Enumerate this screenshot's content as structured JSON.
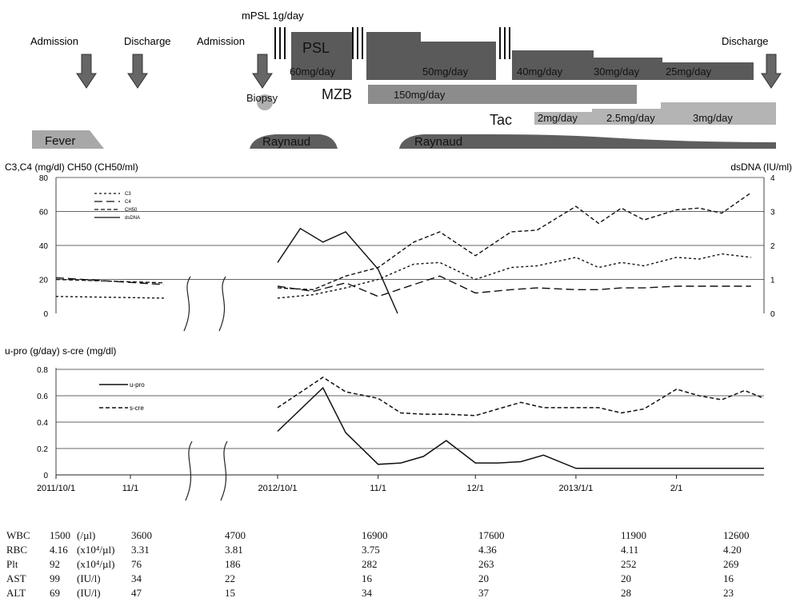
{
  "timeline": {
    "events": [
      {
        "label": "Admission"
      },
      {
        "label": "Discharge"
      },
      {
        "label": "Admission"
      },
      {
        "label": "Discharge"
      }
    ],
    "biopsy_label": "Biopsy",
    "mpsl_label": "mPSL 1g/day",
    "drugs": [
      {
        "name": "PSL",
        "doses": [
          "60mg/day",
          "50mg/day",
          "40mg/day",
          "30mg/day",
          "25mg/day"
        ]
      },
      {
        "name": "MZB",
        "doses": [
          "150mg/day"
        ]
      },
      {
        "name": "Tac",
        "doses": [
          "2mg/day",
          "2.5mg/day",
          "3mg/day"
        ]
      }
    ],
    "symptoms": [
      "Fever",
      "Raynaud",
      "Raynaud"
    ],
    "colors": {
      "psl": "#5a5a5a",
      "mzb": "#8c8c8c",
      "tac": "#b4b4b4",
      "fever": "#a8a8a8",
      "raynaud": "#5e5e5e",
      "arrow": "#666666"
    }
  },
  "chart_data": [
    {
      "type": "line",
      "ylabel_left": "C3,C4 (mg/dl)  CH50 (CH50/ml)",
      "ylabel_right": "dsDNA (IU/ml)",
      "ylim_left": [
        0,
        80
      ],
      "ylim_right": [
        0,
        4
      ],
      "yticks_left": [
        "0",
        "20",
        "40",
        "60",
        "80"
      ],
      "yticks_right": [
        "0",
        "1",
        "2",
        "3",
        "4"
      ],
      "legend": [
        "C3",
        "C4",
        "CH50",
        "dsDNA"
      ],
      "grid": true,
      "series": [
        {
          "name": "C3",
          "axis": "left",
          "style": "short-dash",
          "x": [
            "2011/10/1",
            "2011/11/15",
            "2012/10/1",
            "2012/10/12",
            "2012/10/22",
            "2012/11/1",
            "2012/11/12",
            "2012/11/20",
            "2012/12/1",
            "2012/12/12",
            "2012/12/20",
            "2013/1/1",
            "2013/1/8",
            "2013/1/15",
            "2013/1/22",
            "2013/2/1",
            "2013/2/8",
            "2013/2/15",
            "2013/2/24"
          ],
          "y": [
            10,
            9,
            9,
            11,
            15,
            20,
            29,
            30,
            20,
            27,
            28,
            33,
            27,
            30,
            28,
            33,
            32,
            35,
            33
          ]
        },
        {
          "name": "C4",
          "axis": "left",
          "style": "long-dash",
          "x": [
            "2011/10/1",
            "2011/11/15",
            "2012/10/1",
            "2012/10/12",
            "2012/10/22",
            "2012/11/1",
            "2012/11/12",
            "2012/11/20",
            "2012/12/1",
            "2012/12/12",
            "2012/12/20",
            "2013/1/1",
            "2013/1/8",
            "2013/1/15",
            "2013/1/22",
            "2013/2/1",
            "2013/2/8",
            "2013/2/15",
            "2013/2/24"
          ],
          "y": [
            21,
            17,
            16,
            13,
            18,
            10,
            17,
            22,
            12,
            14,
            15,
            14,
            14,
            15,
            15,
            16,
            16,
            16,
            16
          ]
        },
        {
          "name": "CH50",
          "axis": "left",
          "style": "dash",
          "x": [
            "2011/10/1",
            "2011/11/15",
            "2012/10/1",
            "2012/10/12",
            "2012/10/22",
            "2012/11/1",
            "2012/11/12",
            "2012/11/20",
            "2012/12/1",
            "2012/12/12",
            "2012/12/20",
            "2013/1/1",
            "2013/1/8",
            "2013/1/15",
            "2013/1/22",
            "2013/2/1",
            "2013/2/8",
            "2013/2/15",
            "2013/2/24"
          ],
          "y": [
            20,
            18,
            15,
            14,
            22,
            27,
            42,
            48,
            34,
            48,
            49,
            63,
            53,
            62,
            55,
            61,
            62,
            59,
            71
          ]
        },
        {
          "name": "dsDNA",
          "axis": "right",
          "style": "solid",
          "x": [
            "2012/10/1",
            "2012/10/8",
            "2012/10/15",
            "2012/10/22",
            "2012/11/1",
            "2012/11/7"
          ],
          "y": [
            1.5,
            2.5,
            2.1,
            2.4,
            1.3,
            0
          ]
        }
      ]
    },
    {
      "type": "line",
      "ylabel": "u-pro (g/day)  s-cre (mg/dl)",
      "ylim": [
        0,
        0.8
      ],
      "yticks": [
        "0",
        "0.2",
        "0.4",
        "0.6",
        "0.8"
      ],
      "legend": [
        "u-pro",
        "s-cre"
      ],
      "grid": true,
      "xticks": [
        "2011/10/1",
        "11/1",
        "2012/10/1",
        "11/1",
        "12/1",
        "2013/1/1",
        "2/1"
      ],
      "series": [
        {
          "name": "u-pro",
          "style": "solid",
          "x": [
            "2012/10/1",
            "2012/10/15",
            "2012/10/22",
            "2012/11/1",
            "2012/11/8",
            "2012/11/15",
            "2012/11/22",
            "2012/12/1",
            "2012/12/8",
            "2012/12/15",
            "2012/12/22",
            "2013/1/1",
            "2013/1/15",
            "2013/2/1",
            "2013/2/15",
            "2013/2/28"
          ],
          "y": [
            0.33,
            0.66,
            0.32,
            0.08,
            0.09,
            0.14,
            0.26,
            0.09,
            0.09,
            0.1,
            0.15,
            0.05,
            0.05,
            0.05,
            0.05,
            0.05
          ]
        },
        {
          "name": "s-cre",
          "style": "dash",
          "x": [
            "2012/10/1",
            "2012/10/15",
            "2012/10/22",
            "2012/11/1",
            "2012/11/8",
            "2012/11/15",
            "2012/11/22",
            "2012/12/1",
            "2012/12/8",
            "2012/12/15",
            "2012/12/22",
            "2013/1/1",
            "2013/1/8",
            "2013/1/15",
            "2013/1/22",
            "2013/2/1",
            "2013/2/8",
            "2013/2/15",
            "2013/2/22",
            "2013/2/28"
          ],
          "y": [
            0.51,
            0.74,
            0.63,
            0.58,
            0.47,
            0.46,
            0.46,
            0.45,
            0.5,
            0.55,
            0.51,
            0.51,
            0.51,
            0.47,
            0.5,
            0.65,
            0.6,
            0.57,
            0.64,
            0.58
          ]
        }
      ]
    }
  ],
  "labs": {
    "rows": [
      {
        "name": "WBC",
        "first": "1500",
        "unit": "(/µl)",
        "values": [
          "3600",
          "4700",
          "16900",
          "17600",
          "11900",
          "12600"
        ]
      },
      {
        "name": "RBC",
        "first": "4.16",
        "unit": "(x10⁴/µl)",
        "values": [
          "3.31",
          "3.81",
          "3.75",
          "4.36",
          "4.11",
          "4.20"
        ]
      },
      {
        "name": "Plt",
        "first": "92",
        "unit": "(x10⁴/µl)",
        "values": [
          "76",
          "186",
          "282",
          "263",
          "252",
          "269"
        ]
      },
      {
        "name": "AST",
        "first": "99",
        "unit": "(IU/l)",
        "values": [
          "34",
          "22",
          "16",
          "20",
          "20",
          "16"
        ]
      },
      {
        "name": "ALT",
        "first": "69",
        "unit": "(IU/l)",
        "values": [
          "47",
          "15",
          "34",
          "37",
          "28",
          "23"
        ]
      }
    ]
  }
}
